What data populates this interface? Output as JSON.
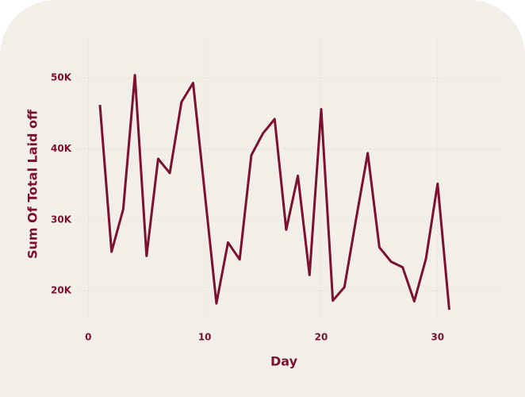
{
  "chart_data": {
    "type": "line",
    "x_label": "Day",
    "y_label": "Sum Of Total Laid off",
    "x": [
      1,
      2,
      3,
      4,
      5,
      6,
      7,
      8,
      9,
      10,
      11,
      12,
      13,
      14,
      15,
      16,
      17,
      18,
      19,
      20,
      21,
      22,
      23,
      24,
      25,
      26,
      27,
      28,
      29,
      30,
      31
    ],
    "series": [
      {
        "name": "Sum Of Total Laid off",
        "color": "#7b1030",
        "values": [
          46200,
          25500,
          31500,
          50400,
          24900,
          38600,
          36600,
          46600,
          49300,
          33800,
          18200,
          26800,
          24400,
          39100,
          42200,
          44200,
          28600,
          36200,
          22200,
          45600,
          18600,
          20500,
          30100,
          39400,
          26100,
          24100,
          23300,
          18500,
          24500,
          35100,
          17300
        ]
      }
    ],
    "xlim": [
      -2,
      35.6
    ],
    "xticks": [
      0,
      10,
      20,
      30
    ],
    "ylim": [
      16200,
      55400
    ],
    "yticks": [
      {
        "value": 20000,
        "label": "20K"
      },
      {
        "value": 30000,
        "label": "30K"
      },
      {
        "value": 40000,
        "label": "40K"
      },
      {
        "value": 50000,
        "label": "50K"
      }
    ],
    "grid": true
  }
}
